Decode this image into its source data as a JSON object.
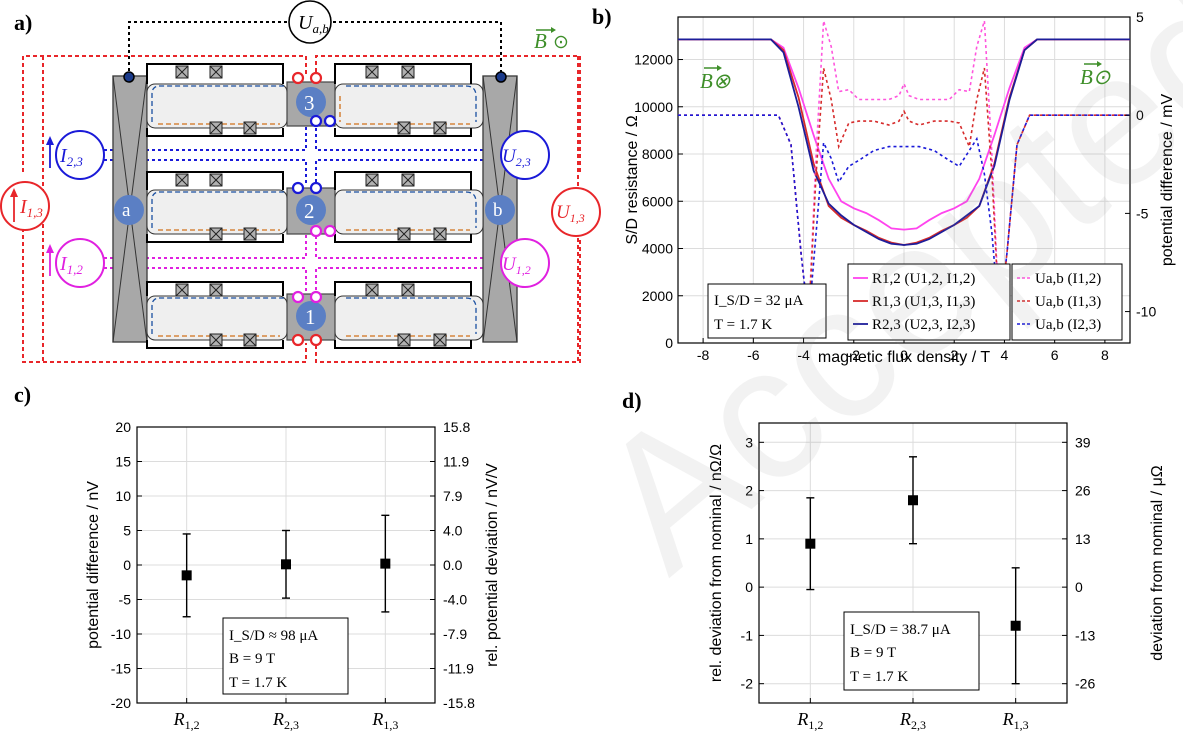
{
  "panels": {
    "a": "a)",
    "b": "b)",
    "c": "c)",
    "d": "d)"
  },
  "watermark": "Accepted Manuscript",
  "schematic": {
    "voltmeter_ab": "U",
    "voltmeter_ab_sub": "a,b",
    "field_symbol": "B",
    "field_out": "⊙",
    "contact_a": "a",
    "contact_b": "b",
    "contact_1": "1",
    "contact_2": "2",
    "contact_3": "3",
    "I13": "I",
    "I13_sub": "1,3",
    "U13": "U",
    "U13_sub": "1,3",
    "I23": "I",
    "I23_sub": "2,3",
    "U23": "U",
    "U23_sub": "2,3",
    "I12": "I",
    "I12_sub": "1,2",
    "U12": "U",
    "U12_sub": "1,2"
  },
  "colors": {
    "red": "#e8262a",
    "blue": "#1a1ad8",
    "magenta": "#e020e0",
    "green": "#3f8f2a",
    "dark_red": "#d62b2b",
    "navy": "#1d1d9a",
    "pink_line": "#ff55dd",
    "contact_blue": "#5b7fc4"
  },
  "chart_data": [
    {
      "id": "b",
      "type": "line",
      "xlabel": "magnetic flux density / T",
      "ylabel": "S/D resistance / Ω",
      "y2label": "potential difference / mV",
      "xlim": [
        -9,
        9
      ],
      "ylim": [
        0,
        13800
      ],
      "y2lim": [
        -11.6,
        5
      ],
      "xticks": [
        "-8",
        "-6",
        "-4",
        "-2",
        "0",
        "2",
        "4",
        "6",
        "8"
      ],
      "yticks": [
        "0",
        "2000",
        "4000",
        "6000",
        "8000",
        "10000",
        "12000"
      ],
      "y2ticks": [
        "-10",
        "-5",
        "0",
        "5"
      ],
      "field_in_label": "B⊗",
      "field_out_label": "B⊙",
      "info": {
        "line1": "I_S/D = 32 μA",
        "line2": "T = 1.7 K"
      },
      "legend_left": [
        "R1,2 (U1,2, I1,2)",
        "R1,3 (U1,3, I1,3)",
        "R2,3 (U2,3, I2,3)"
      ],
      "legend_right": [
        "Ua,b (I1,2)",
        "Ua,b (I1,3)",
        "Ua,b (I2,3)"
      ],
      "series": [
        {
          "name": "R1,2 (U1,2, I1,2)",
          "axis": "left",
          "color": "#ff44ee",
          "dash": false,
          "x": [
            -9,
            -5.3,
            -4.8,
            -4.2,
            -3.6,
            -3.0,
            -2.5,
            -2.0,
            -1.5,
            -1.0,
            -0.5,
            0,
            0.5,
            1.0,
            1.5,
            2.0,
            2.5,
            3.0,
            3.6,
            4.2,
            4.8,
            5.3,
            9
          ],
          "y": [
            12850,
            12850,
            12500,
            10800,
            8800,
            6950,
            6000,
            5700,
            5500,
            5200,
            4850,
            4800,
            4850,
            5200,
            5500,
            5700,
            6000,
            6950,
            8800,
            10800,
            12500,
            12850,
            12850
          ]
        },
        {
          "name": "R1,3 (U1,3, I1,3)",
          "axis": "left",
          "color": "#d62b2b",
          "dash": false,
          "x": [
            -9,
            -5.3,
            -4.8,
            -4.2,
            -3.6,
            -3.0,
            -2.5,
            -2.0,
            -1.5,
            -1.0,
            -0.5,
            0,
            0.5,
            1.0,
            1.5,
            2.0,
            2.5,
            3.0,
            3.6,
            4.2,
            4.8,
            5.3,
            9
          ],
          "y": [
            12850,
            12850,
            12400,
            10400,
            7600,
            5800,
            5300,
            5000,
            4750,
            4450,
            4250,
            4150,
            4250,
            4450,
            4750,
            5000,
            5300,
            5800,
            7600,
            10400,
            12400,
            12850,
            12850
          ]
        },
        {
          "name": "R2,3 (U2,3, I2,3)",
          "axis": "left",
          "color": "#1d1d9a",
          "dash": false,
          "x": [
            -9,
            -5.3,
            -4.8,
            -4.2,
            -3.6,
            -3.0,
            -2.5,
            -2.0,
            -1.5,
            -1.0,
            -0.5,
            0,
            0.5,
            1.0,
            1.5,
            2.0,
            2.5,
            3.0,
            3.6,
            4.2,
            4.8,
            5.3,
            9
          ],
          "y": [
            12850,
            12850,
            12300,
            10000,
            7300,
            5900,
            5400,
            5000,
            4700,
            4400,
            4200,
            4150,
            4200,
            4400,
            4700,
            5000,
            5400,
            5800,
            7500,
            10300,
            12400,
            12850,
            12850
          ]
        },
        {
          "name": "Ua,b (I1,2)",
          "axis": "right",
          "color": "#ff55dd",
          "dash": true,
          "x": [
            -9,
            -5,
            -4.5,
            -4.1,
            -3.8,
            -3.5,
            -3.2,
            -2.9,
            -2.6,
            -2.2,
            -1.8,
            -1.2,
            -0.6,
            -0.2,
            0,
            0.2,
            0.6,
            1.2,
            1.8,
            2.2,
            2.6,
            2.9,
            3.2,
            3.5,
            3.8,
            4.1,
            4.5,
            5,
            9
          ],
          "y": [
            0,
            0,
            -1.5,
            -7,
            -10.5,
            -2,
            4.8,
            3.5,
            1.2,
            1.3,
            0.8,
            0.8,
            0.8,
            1.0,
            1.6,
            1.0,
            0.8,
            0.8,
            0.8,
            1.3,
            1.2,
            3.5,
            4.8,
            -2,
            -10.5,
            -7,
            -1.5,
            0,
            0
          ]
        },
        {
          "name": "Ua,b (I1,3)",
          "axis": "right",
          "color": "#d62b2b",
          "dash": true,
          "x": [
            -9,
            -5,
            -4.5,
            -4.1,
            -3.8,
            -3.5,
            -3.2,
            -2.9,
            -2.6,
            -2.2,
            -1.8,
            -1.2,
            -0.6,
            -0.2,
            0,
            0.2,
            0.6,
            1.2,
            1.8,
            2.2,
            2.6,
            2.9,
            3.2,
            3.5,
            3.8,
            4.1,
            4.5,
            5,
            9
          ],
          "y": [
            0,
            0,
            -1.5,
            -7,
            -10.5,
            -3,
            2.4,
            0.8,
            -1.6,
            -0.4,
            -0.3,
            -0.3,
            -0.5,
            -0.3,
            0.2,
            -0.3,
            -0.5,
            -0.3,
            -0.3,
            -0.4,
            -1.6,
            0.8,
            2.4,
            -3,
            -10.5,
            -7,
            -1.5,
            0,
            0
          ]
        },
        {
          "name": "Ua,b (I2,3)",
          "axis": "right",
          "color": "#1a1ad8",
          "dash": true,
          "x": [
            -9,
            -5,
            -4.5,
            -4.1,
            -3.8,
            -3.5,
            -3.2,
            -2.9,
            -2.6,
            -2.2,
            -1.8,
            -1.2,
            -0.6,
            0,
            0.6,
            1.2,
            1.8,
            2.2,
            2.6,
            2.9,
            3.2,
            3.5,
            3.8,
            4.1,
            4.5,
            5,
            9
          ],
          "y": [
            0,
            0,
            -1.5,
            -7,
            -10.5,
            -6,
            -1.4,
            -2.2,
            -3.4,
            -2.6,
            -2.3,
            -1.8,
            -1.6,
            -1.6,
            -1.6,
            -1.8,
            -2.3,
            -2.6,
            -1.8,
            -1.2,
            -3.0,
            -6,
            -10.5,
            -7,
            -1.5,
            0,
            0
          ]
        }
      ]
    },
    {
      "id": "c",
      "type": "scatter",
      "categories": [
        "R1,2",
        "R2,3",
        "R1,3"
      ],
      "values": [
        -1.5,
        0.1,
        0.2
      ],
      "err": [
        6.0,
        4.9,
        7.0
      ],
      "ylabel": "potential difference / nV",
      "y2label": "rel. potential deviation / nV/V",
      "ylim": [
        -20,
        20
      ],
      "yticks": [
        "-20",
        "-15",
        "-10",
        "-5",
        "0",
        "5",
        "10",
        "15",
        "20"
      ],
      "y2ticks": [
        "-15.8",
        "-11.9",
        "-7.9",
        "-4.0",
        "0.0",
        "4.0",
        "7.9",
        "11.9",
        "15.8"
      ],
      "info": {
        "line1": "I_S/D ≈ 98 μA",
        "line2": "B = 9 T",
        "line3": "T = 1.7 K"
      }
    },
    {
      "id": "d",
      "type": "scatter",
      "categories": [
        "R1,2",
        "R2,3",
        "R1,3"
      ],
      "values": [
        0.9,
        1.8,
        -0.8
      ],
      "err": [
        0.95,
        0.9,
        1.2
      ],
      "ylabel": "rel. deviation from nominal / nΩ/Ω",
      "y2label": "deviation from nominal / μΩ",
      "ylim": [
        -2.4,
        3.4
      ],
      "yticks": [
        "-2",
        "-1",
        "0",
        "1",
        "2",
        "3"
      ],
      "y2ticks": [
        "-26",
        "-13",
        "0",
        "13",
        "26",
        "39"
      ],
      "info": {
        "line1": "I_S/D = 38.7 μA",
        "line2": "B = 9 T",
        "line3": "T = 1.7 K"
      }
    }
  ]
}
